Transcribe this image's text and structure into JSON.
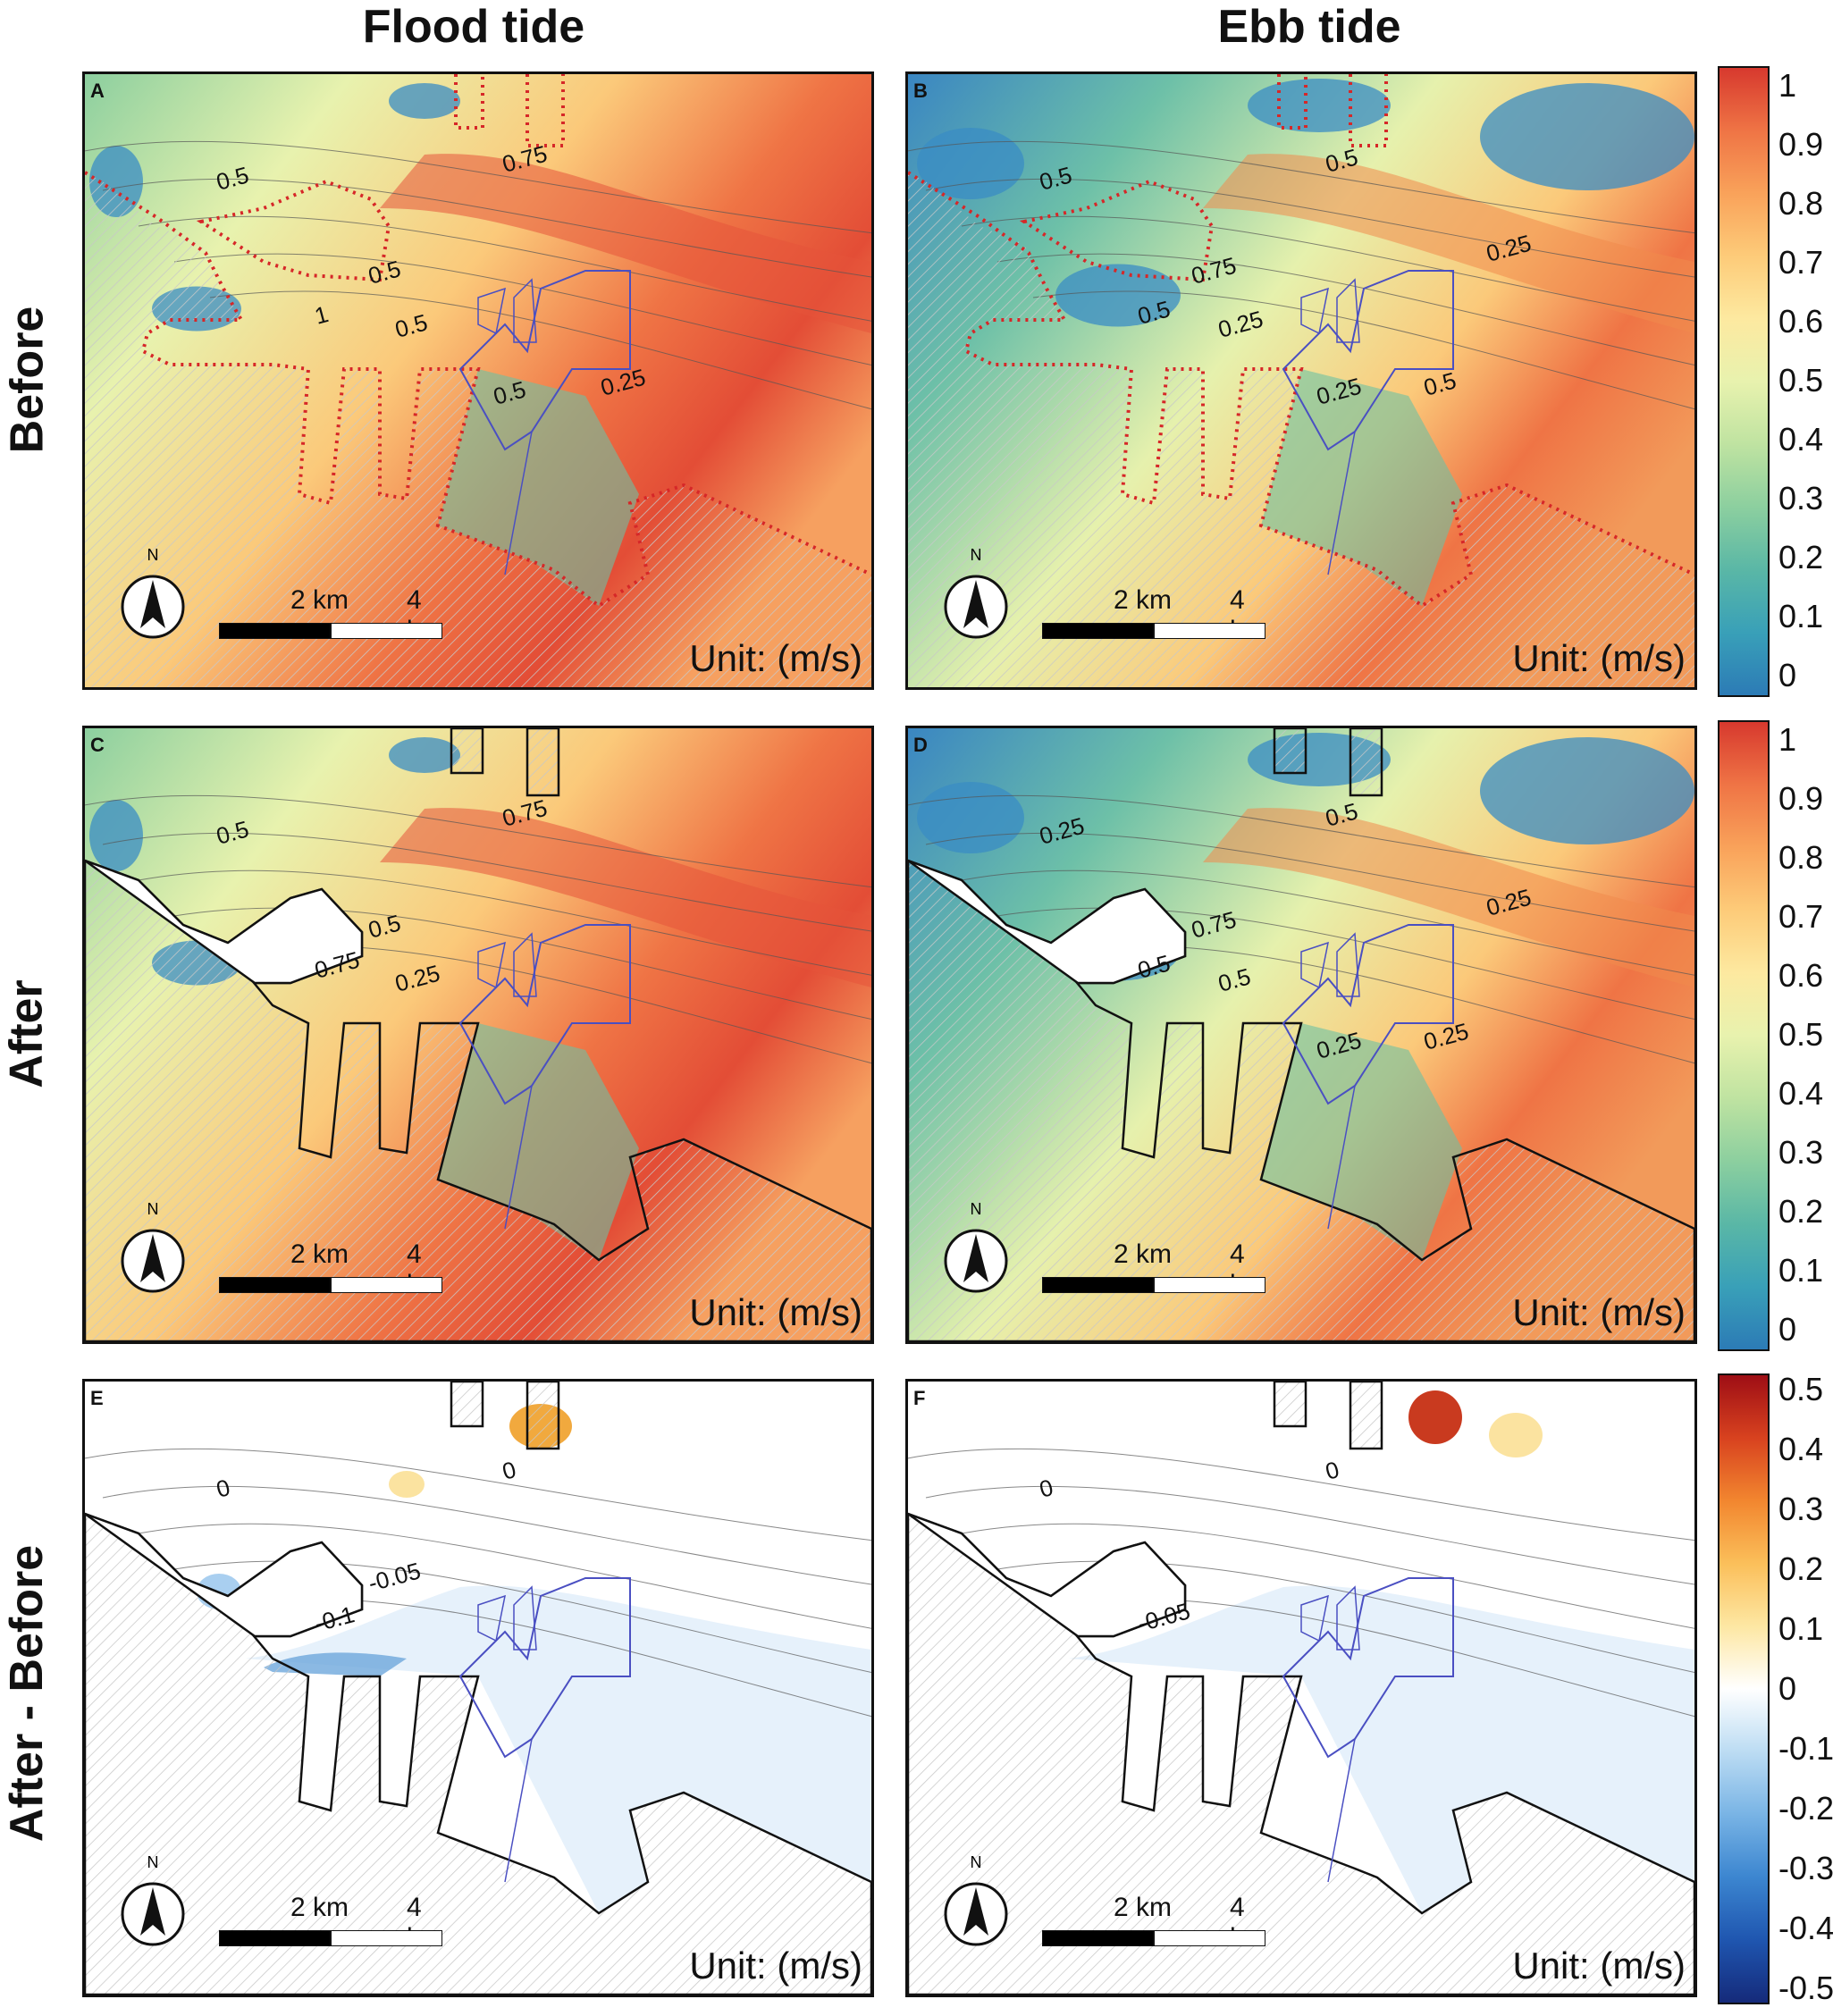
{
  "columns": [
    "Flood tide",
    "Ebb tide"
  ],
  "rows": [
    "Before",
    "After",
    "After - Before"
  ],
  "panels": [
    {
      "letter": "A",
      "scale_labels": [
        "2 km",
        "4 km"
      ],
      "unit": "Unit: (m/s)",
      "north": "N",
      "contour_labels": [
        "0.5",
        "0.75",
        "1",
        "0.5",
        "0.5",
        "0.5",
        "0.25"
      ]
    },
    {
      "letter": "B",
      "scale_labels": [
        "2 km",
        "4 km"
      ],
      "unit": "Unit: (m/s)",
      "north": "N",
      "contour_labels": [
        "0.5",
        "0.5",
        "0.5",
        "0.75",
        "0.25",
        "0.25",
        "0.5",
        "0.25"
      ]
    },
    {
      "letter": "C",
      "scale_labels": [
        "2 km",
        "4 km"
      ],
      "unit": "Unit: (m/s)",
      "north": "N",
      "contour_labels": [
        "0.5",
        "0.75",
        "0.75",
        "0.5",
        "0.25"
      ]
    },
    {
      "letter": "D",
      "scale_labels": [
        "2 km",
        "4 km"
      ],
      "unit": "Unit: (m/s)",
      "north": "N",
      "contour_labels": [
        "0.25",
        "0.5",
        "0.5",
        "0.75",
        "0.5",
        "0.25",
        "0.25",
        "0.25"
      ]
    },
    {
      "letter": "E",
      "scale_labels": [
        "2 km",
        "4 km"
      ],
      "unit": "Unit: (m/s)",
      "north": "N",
      "contour_labels": [
        "0",
        "0",
        "-0.1",
        "-0.05"
      ]
    },
    {
      "letter": "F",
      "scale_labels": [
        "2 km",
        "4 km"
      ],
      "unit": "Unit: (m/s)",
      "north": "N",
      "contour_labels": [
        "0",
        "0",
        "-0.05"
      ]
    }
  ],
  "colorbars": [
    {
      "ticks": [
        "1",
        "0.9",
        "0.8",
        "0.7",
        "0.6",
        "0.5",
        "0.4",
        "0.3",
        "0.2",
        "0.1",
        "0"
      ],
      "colors": [
        "#2c7bb6",
        "#39a0b8",
        "#5ab7a6",
        "#8ccf9f",
        "#bfe3a1",
        "#e8f2ae",
        "#fde9a0",
        "#fdcb79",
        "#f9a25a",
        "#ef7445",
        "#d7392e"
      ]
    },
    {
      "ticks": [
        "1",
        "0.9",
        "0.8",
        "0.7",
        "0.6",
        "0.5",
        "0.4",
        "0.3",
        "0.2",
        "0.1",
        "0"
      ],
      "colors": [
        "#2c7bb6",
        "#39a0b8",
        "#5ab7a6",
        "#8ccf9f",
        "#bfe3a1",
        "#e8f2ae",
        "#fde9a0",
        "#fdcb79",
        "#f9a25a",
        "#ef7445",
        "#d7392e"
      ]
    },
    {
      "ticks": [
        "0.5",
        "0.4",
        "0.3",
        "0.2",
        "0.1",
        "0",
        "-0.1",
        "-0.2",
        "-0.3",
        "-0.4",
        "-0.5"
      ],
      "colors": [
        "#152a7a",
        "#1f56b0",
        "#3c86d0",
        "#79b4e5",
        "#bcdcf3",
        "#ffffff",
        "#fde7a3",
        "#fbbf5a",
        "#f2862f",
        "#d8421f",
        "#9e0e15"
      ]
    }
  ],
  "colors": {
    "coast": "#111111",
    "dotted": "#d62728",
    "polygon": "#4a4fc2"
  }
}
